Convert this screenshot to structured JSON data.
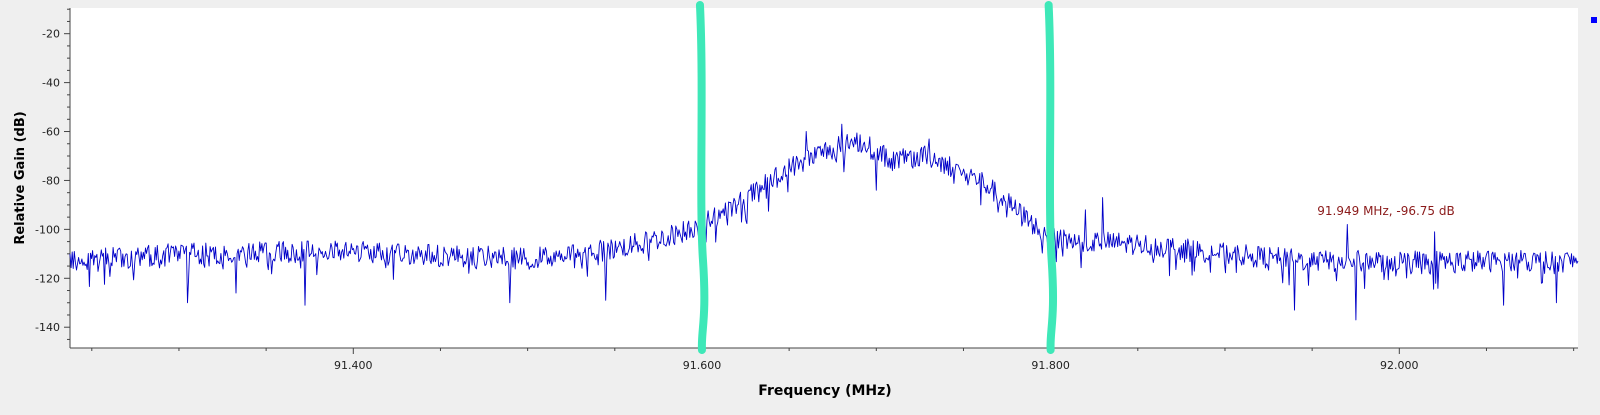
{
  "chart_data": {
    "type": "line",
    "title": "",
    "xlabel": "Frequency (MHz)",
    "ylabel": "Relative Gain (dB)",
    "xlim": [
      91.2375,
      92.1025
    ],
    "ylim": [
      -148.5,
      -9.5
    ],
    "x_ticks": [
      {
        "value": 91.4,
        "label": "91.400"
      },
      {
        "value": 91.6,
        "label": "91.600"
      },
      {
        "value": 91.8,
        "label": "91.800"
      },
      {
        "value": 92.0,
        "label": "92.000"
      }
    ],
    "x_minor_step": 0.05,
    "y_ticks": [
      {
        "value": -20,
        "label": "-20"
      },
      {
        "value": -40,
        "label": "-40"
      },
      {
        "value": -60,
        "label": "-60"
      },
      {
        "value": -80,
        "label": "-80"
      },
      {
        "value": -100,
        "label": "-100"
      },
      {
        "value": -120,
        "label": "-120"
      },
      {
        "value": -140,
        "label": "-140"
      }
    ],
    "y_minor_step": 5,
    "grid": false,
    "series": [
      {
        "color": "#0000c8",
        "x_start": 91.2375,
        "x_end": 92.1025,
        "sample_count": 1400,
        "envelope": [
          [
            91.24,
            -113
          ],
          [
            91.3,
            -110
          ],
          [
            91.4,
            -109
          ],
          [
            91.5,
            -112
          ],
          [
            91.55,
            -108
          ],
          [
            91.58,
            -103
          ],
          [
            91.6,
            -98
          ],
          [
            91.62,
            -90
          ],
          [
            91.65,
            -75
          ],
          [
            91.67,
            -68
          ],
          [
            91.69,
            -64
          ],
          [
            91.71,
            -72
          ],
          [
            91.73,
            -70
          ],
          [
            91.76,
            -80
          ],
          [
            91.78,
            -92
          ],
          [
            91.8,
            -104
          ],
          [
            91.85,
            -106
          ],
          [
            91.9,
            -110
          ],
          [
            91.95,
            -113
          ],
          [
            92.1,
            -113
          ]
        ],
        "ripple_db": 9,
        "dips": [
          [
            91.305,
            -130
          ],
          [
            91.333,
            -126
          ],
          [
            91.372,
            -131
          ],
          [
            91.49,
            -130
          ],
          [
            91.545,
            -129
          ],
          [
            91.664,
            -73
          ],
          [
            91.7,
            -84
          ],
          [
            91.73,
            -86
          ],
          [
            91.76,
            -90
          ],
          [
            91.77,
            -93
          ],
          [
            91.79,
            -98
          ],
          [
            91.94,
            -133
          ],
          [
            91.975,
            -137
          ],
          [
            92.06,
            -131
          ],
          [
            92.09,
            -130
          ]
        ],
        "peaks": [
          [
            91.68,
            -57
          ],
          [
            91.66,
            -60
          ],
          [
            91.73,
            -63
          ],
          [
            91.775,
            -95
          ],
          [
            91.83,
            -87
          ],
          [
            91.97,
            -98
          ],
          [
            92.02,
            -101
          ],
          [
            91.82,
            -92
          ]
        ]
      }
    ],
    "annotations": [
      {
        "text": "91.949 MHz, -96.75 dB",
        "x": 91.949,
        "y": -96.75,
        "color": "#8b1a1a"
      }
    ],
    "markers": [
      {
        "x": 91.6,
        "color": "#3ee8b8"
      },
      {
        "x": 91.8,
        "color": "#3ee8b8"
      }
    ],
    "legend": {
      "position": "top-right",
      "swatch_color": "#0000ff"
    }
  }
}
